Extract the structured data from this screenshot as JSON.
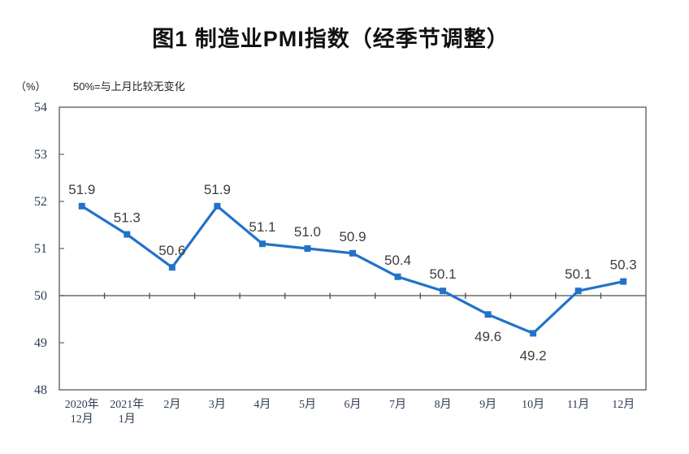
{
  "title": "图1 制造业PMI指数（经季节调整）",
  "axis_unit": "（%）",
  "note": "50%=与上月比较无变化",
  "colors": {
    "line": "#2272C8",
    "marker": "#2272C8",
    "point_label_text": "#3d3d3d",
    "axis_text": "#2e3c55",
    "plot_border": "#6e6e6e",
    "reference_line": "#4d4d4d"
  },
  "chart_data": {
    "type": "line",
    "title": "图1 制造业PMI指数（经季节调整）",
    "subtitle_note": "50%=与上月比较无变化",
    "ylabel": "（%）",
    "xlabel": "",
    "categories": [
      "2020年\n12月",
      "2021年\n1月",
      "2月",
      "3月",
      "4月",
      "5月",
      "6月",
      "7月",
      "8月",
      "9月",
      "10月",
      "11月",
      "12月"
    ],
    "values": [
      51.9,
      51.3,
      50.6,
      51.9,
      51.1,
      51.0,
      50.9,
      50.4,
      50.1,
      49.6,
      49.2,
      50.1,
      50.3
    ],
    "point_labels": [
      "51.9",
      "51.3",
      "50.6",
      "51.9",
      "51.1",
      "51.0",
      "50.9",
      "50.4",
      "50.1",
      "49.6",
      "49.2",
      "50.1",
      "50.3"
    ],
    "label_position": [
      "above",
      "above",
      "above",
      "above",
      "above",
      "above",
      "above",
      "above",
      "above",
      "below",
      "below",
      "above",
      "above"
    ],
    "ylim": [
      48,
      54
    ],
    "ytick_step": 1,
    "reference_line": 50,
    "grid": false,
    "legend": false,
    "marker": "square",
    "series_name": "制造业PMI"
  }
}
